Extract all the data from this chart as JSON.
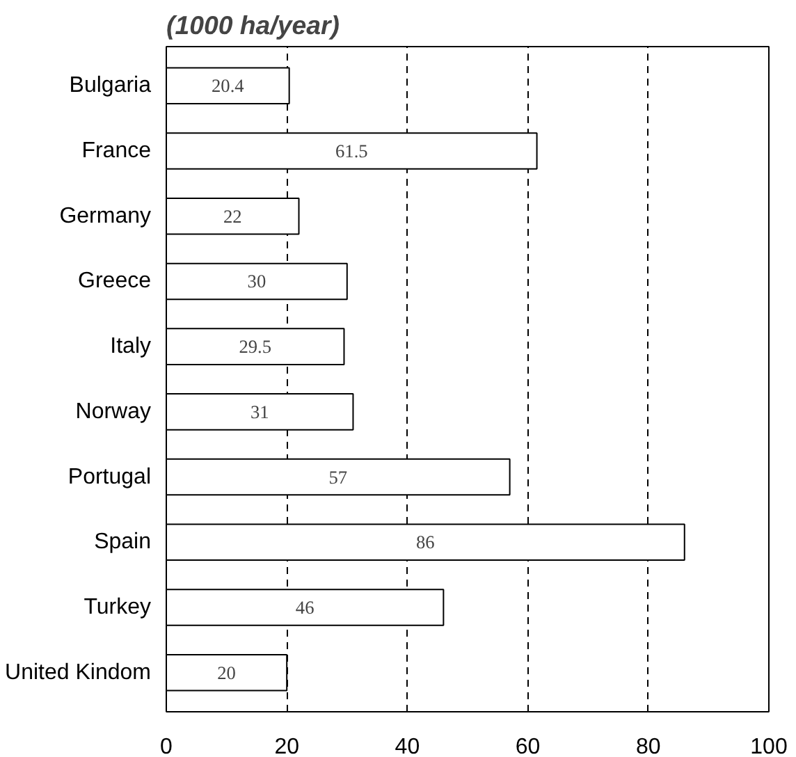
{
  "chart_data": {
    "type": "bar",
    "orientation": "horizontal",
    "title": "(1000 ha/year)",
    "categories": [
      "Bulgaria",
      "France",
      "Germany",
      "Greece",
      "Italy",
      "Norway",
      "Portugal",
      "Spain",
      "Turkey",
      "United Kindom"
    ],
    "values": [
      20.4,
      61.5,
      22,
      30,
      29.5,
      31,
      57,
      86,
      46,
      20
    ],
    "color": "#ffffff",
    "data_labels": true,
    "xlim": [
      0,
      100
    ],
    "xticks": [
      0,
      20,
      40,
      60,
      80,
      100
    ],
    "grid": "x"
  }
}
